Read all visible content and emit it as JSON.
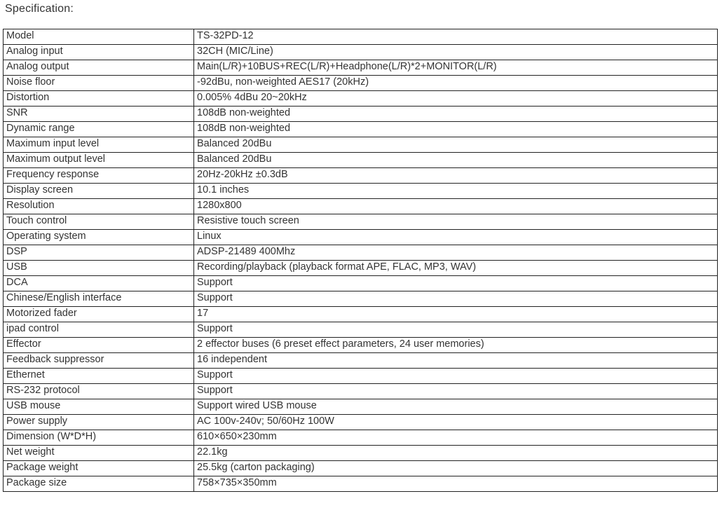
{
  "page": {
    "title": "Specification:"
  },
  "table": {
    "rows": [
      {
        "label": "Model",
        "value": "TS-32PD-12"
      },
      {
        "label": "Analog input",
        "value": "32CH (MIC/Line)"
      },
      {
        "label": "Analog output",
        "value": "Main(L/R)+10BUS+REC(L/R)+Headphone(L/R)*2+MONITOR(L/R)"
      },
      {
        "label": "Noise floor",
        "value": "-92dBu, non-weighted AES17 (20kHz)"
      },
      {
        "label": "Distortion",
        "value": "0.005% 4dBu 20~20kHz"
      },
      {
        "label": "SNR",
        "value": "108dB non-weighted"
      },
      {
        "label": "Dynamic range",
        "value": "108dB non-weighted"
      },
      {
        "label": "Maximum input level",
        "value": "Balanced 20dBu"
      },
      {
        "label": "Maximum output level",
        "value": "Balanced 20dBu"
      },
      {
        "label": "Frequency response",
        "value": "20Hz-20kHz ±0.3dB"
      },
      {
        "label": "Display screen",
        "value": "10.1 inches"
      },
      {
        "label": "Resolution",
        "value": "1280x800"
      },
      {
        "label": "Touch control",
        "value": "Resistive touch screen"
      },
      {
        "label": "Operating system",
        "value": "Linux"
      },
      {
        "label": "DSP",
        "value": "ADSP-21489 400Mhz"
      },
      {
        "label": "USB",
        "value": "Recording/playback (playback format APE, FLAC, MP3, WAV)"
      },
      {
        "label": "DCA",
        "value": "Support"
      },
      {
        "label": "Chinese/English interface",
        "value": "Support"
      },
      {
        "label": "Motorized fader",
        "value": "17"
      },
      {
        "label": "ipad control",
        "value": "Support"
      },
      {
        "label": "Effector",
        "value": "2 effector buses (6 preset effect parameters, 24 user memories)"
      },
      {
        "label": "Feedback suppressor",
        "value": "16 independent"
      },
      {
        "label": "Ethernet",
        "value": "Support"
      },
      {
        "label": "RS-232 protocol",
        "value": "Support"
      },
      {
        "label": "USB mouse",
        "value": "Support wired USB mouse"
      },
      {
        "label": "Power supply",
        "value": "AC 100v-240v; 50/60Hz 100W"
      },
      {
        "label": "Dimension (W*D*H)",
        "value": "610×650×230mm"
      },
      {
        "label": "Net weight",
        "value": "22.1kg"
      },
      {
        "label": "Package weight",
        "value": "25.5kg (carton packaging)"
      },
      {
        "label": "Package size",
        "value": "758×735×350mm"
      }
    ]
  }
}
